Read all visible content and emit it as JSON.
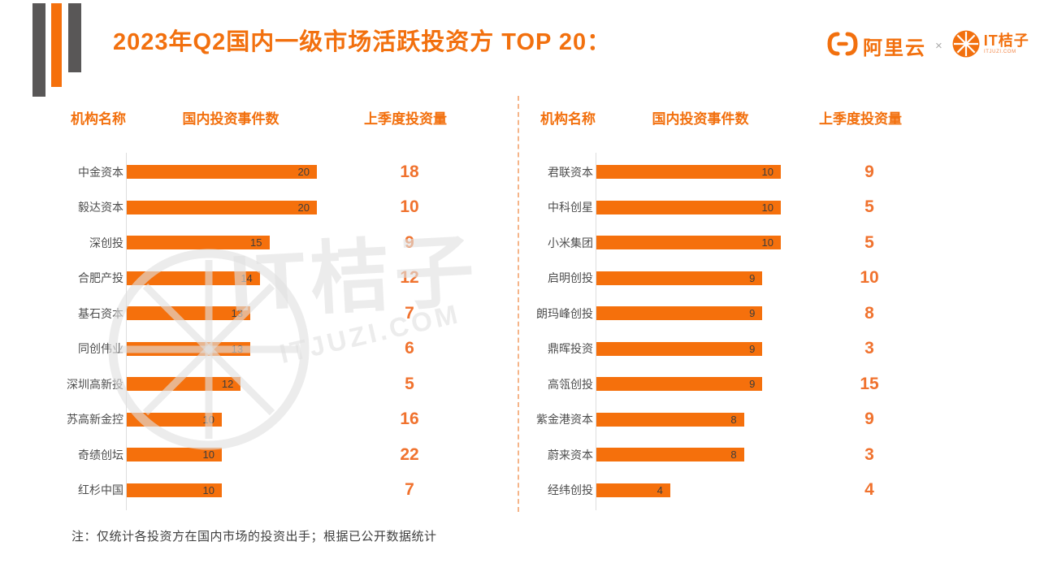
{
  "title": "2023年Q2国内一级市场活跃投资方 TOP 20：",
  "brand": {
    "aliyun": "阿里云",
    "separator": "×",
    "itjuzi": "IT桔子",
    "itjuzi_sub": "ITJUZI.COM"
  },
  "column_headers": {
    "name": "机构名称",
    "events": "国内投资事件数",
    "volume": "上季度投资量"
  },
  "note": "注：仅统计各投资方在国内市场的投资出手；根据已公开数据统计",
  "watermark": {
    "text": "IT桔子",
    "sub": "ITJUZI.COM"
  },
  "colors": {
    "orange": "#F5700C",
    "orange_text": "#F2700E",
    "value_orange": "#F0722E",
    "deco_gray": "#595757",
    "bar_label": "#3D3D3D",
    "row_label": "#4D4D4D",
    "axis": "#DEDEDE",
    "divider": "#F5B488",
    "note_text": "#3E3E3E"
  },
  "chart_data": [
    {
      "type": "bar",
      "orientation": "horizontal",
      "panel": "left",
      "categories": [
        "中金资本",
        "毅达资本",
        "深创投",
        "合肥产投",
        "基石资本",
        "同创伟业",
        "深圳高新投",
        "苏高新金控",
        "奇绩创坛",
        "红杉中国"
      ],
      "series": [
        {
          "name": "国内投资事件数",
          "values": [
            20,
            20,
            15,
            14,
            13,
            13,
            12,
            10,
            10,
            10
          ]
        },
        {
          "name": "上季度投资量",
          "values": [
            18,
            10,
            9,
            12,
            7,
            6,
            5,
            16,
            22,
            7
          ]
        }
      ],
      "xlim": [
        0,
        20
      ],
      "bar_labels": true,
      "grid": false,
      "legend": false
    },
    {
      "type": "bar",
      "orientation": "horizontal",
      "panel": "right",
      "categories": [
        "君联资本",
        "中科创星",
        "小米集团",
        "启明创投",
        "朗玛峰创投",
        "鼎晖投资",
        "高瓴创投",
        "紫金港资本",
        "蔚来资本",
        "经纬创投"
      ],
      "series": [
        {
          "name": "国内投资事件数",
          "values": [
            10,
            10,
            10,
            9,
            9,
            9,
            9,
            8,
            8,
            4
          ]
        },
        {
          "name": "上季度投资量",
          "values": [
            9,
            5,
            5,
            10,
            8,
            3,
            15,
            9,
            3,
            4
          ]
        }
      ],
      "xlim": [
        0,
        10
      ],
      "bar_labels": true,
      "grid": false,
      "legend": false
    }
  ]
}
